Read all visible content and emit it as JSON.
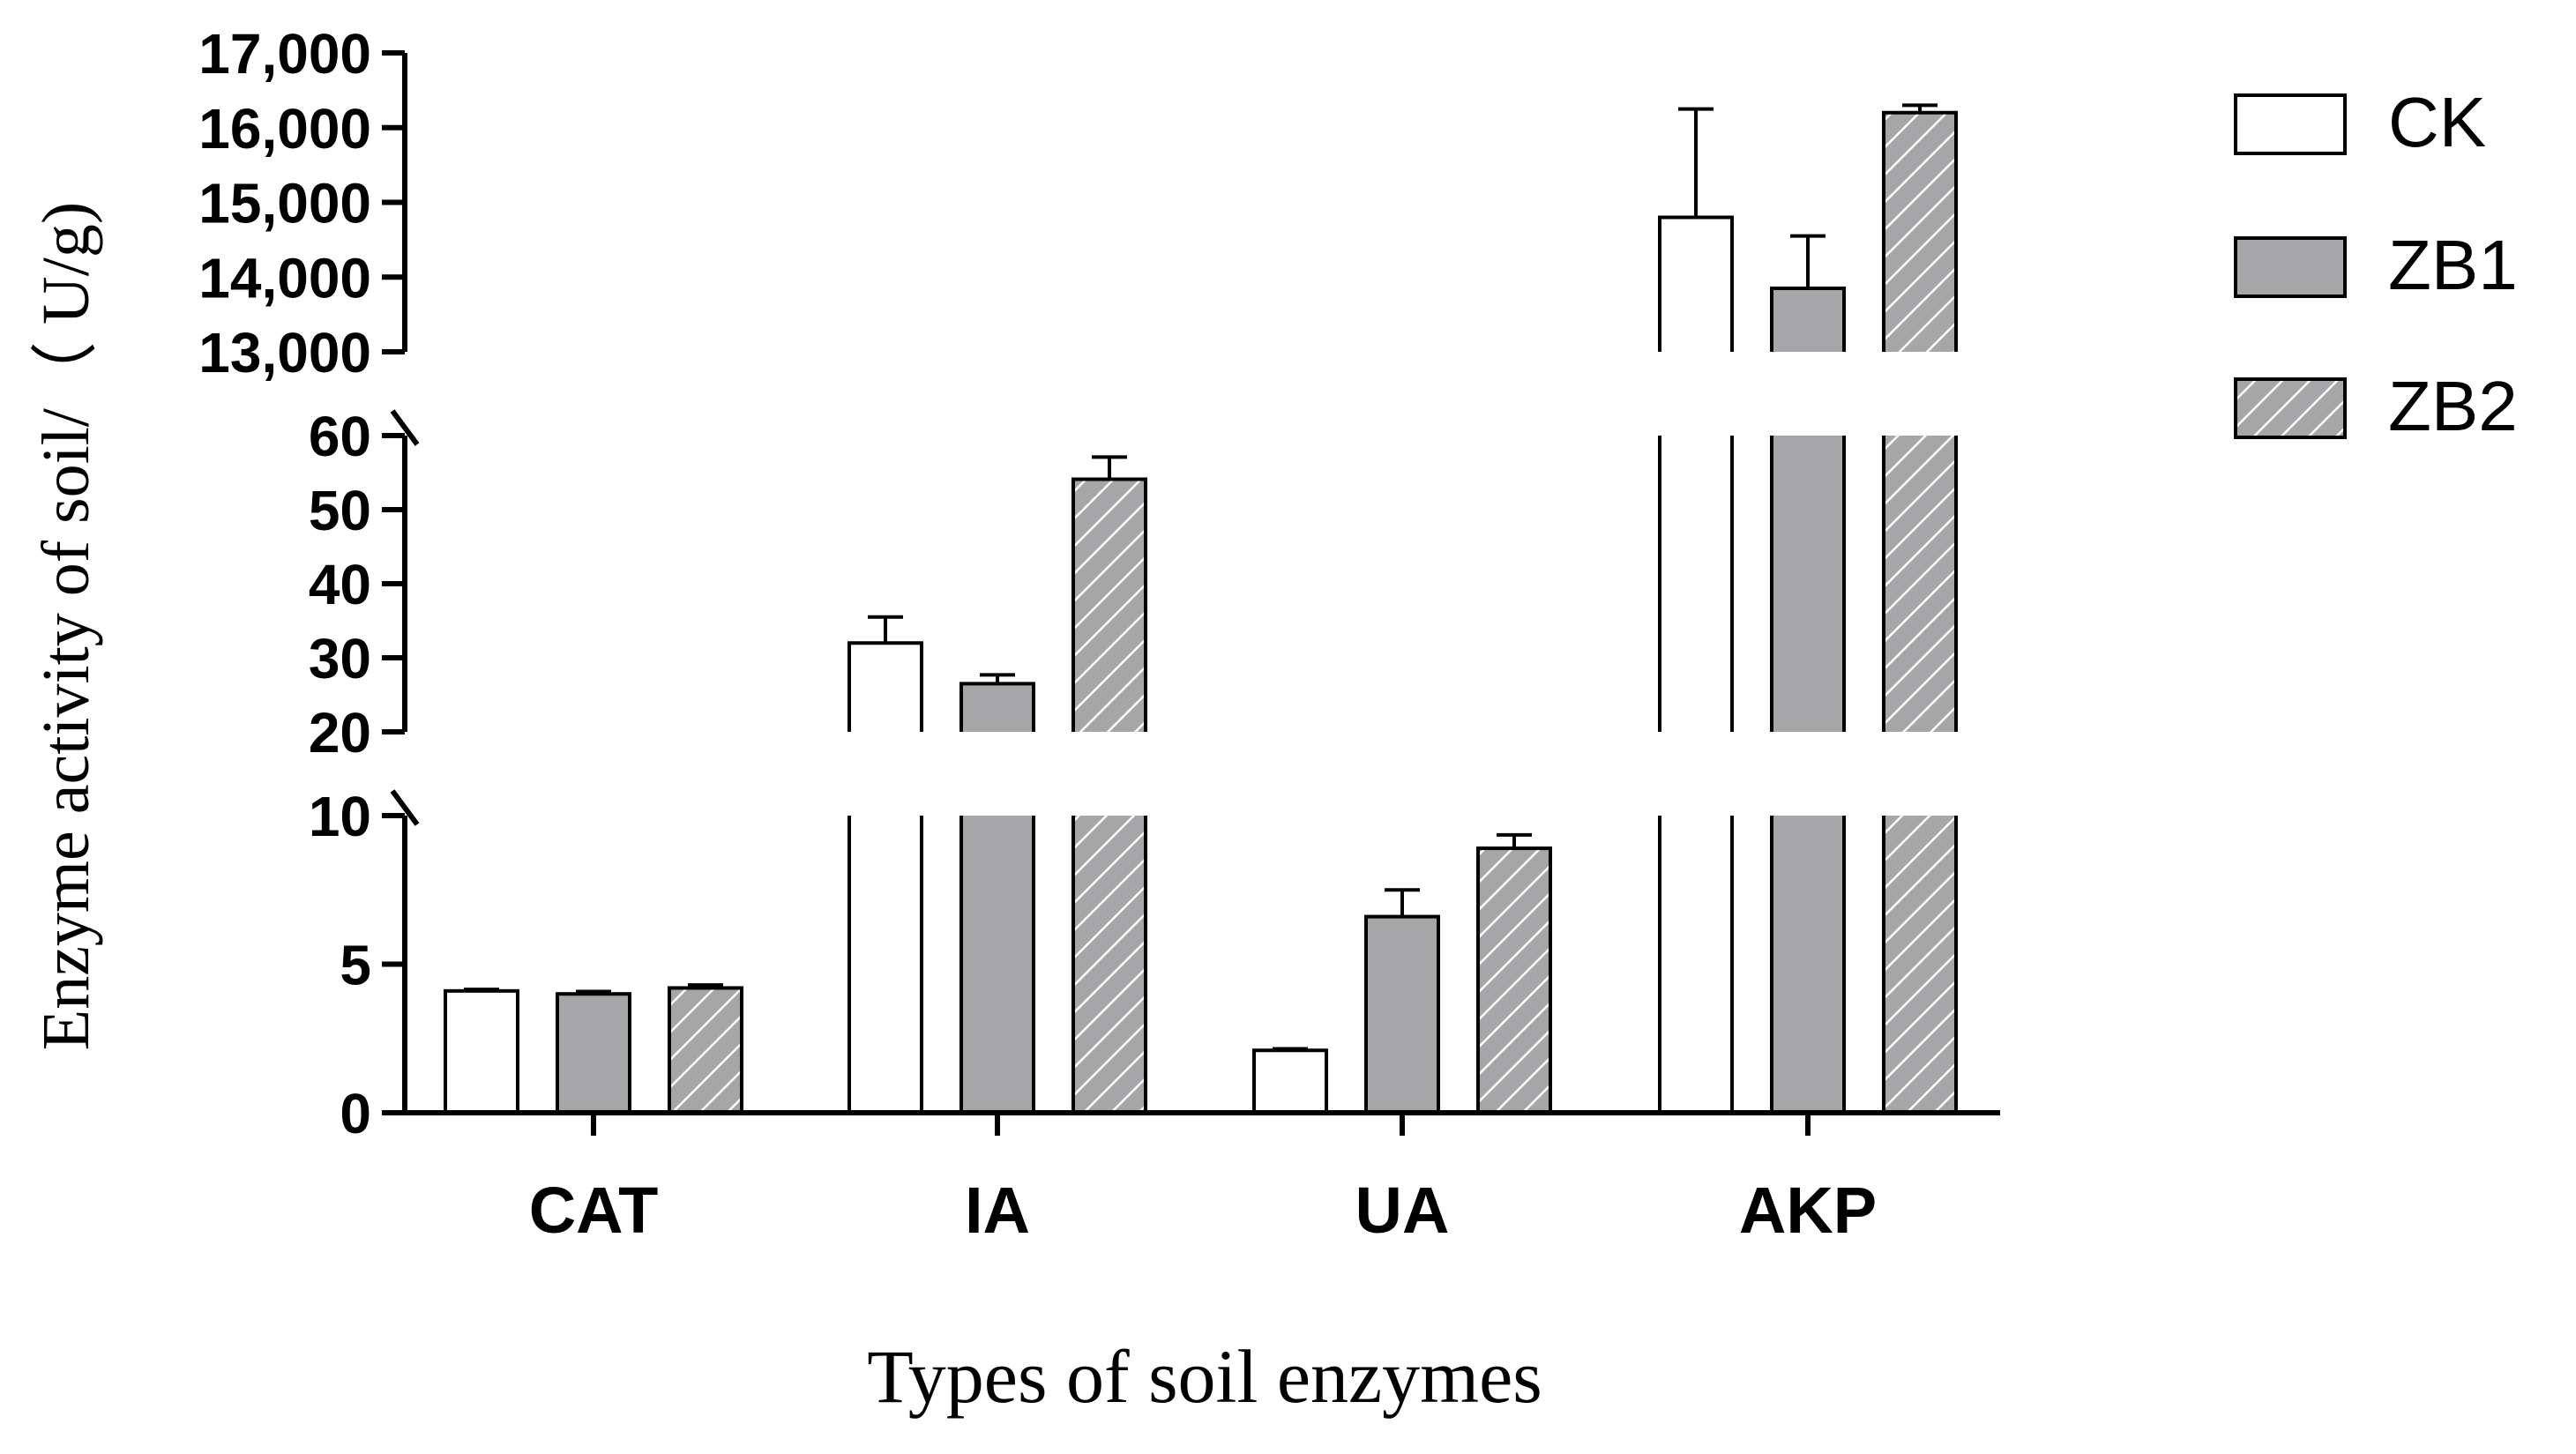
{
  "chart_data": {
    "type": "bar",
    "title": "",
    "xlabel": "Types of soil enzymes",
    "ylabel": "Enzyme activity of soil/（ U/g)",
    "categories": [
      "CAT",
      "IA",
      "UA",
      "AKP"
    ],
    "series": [
      {
        "name": "CK",
        "values": [
          4.1,
          32,
          2.1,
          14800
        ],
        "errors": [
          0.05,
          3.5,
          0.05,
          1450
        ],
        "fill": "#ffffff",
        "pattern": "none"
      },
      {
        "name": "ZB1",
        "values": [
          4.0,
          26.5,
          6.6,
          13850
        ],
        "errors": [
          0.08,
          1.2,
          0.9,
          700
        ],
        "fill": "#a6a6a8",
        "pattern": "none"
      },
      {
        "name": "ZB2",
        "values": [
          4.2,
          54.1,
          8.9,
          16200
        ],
        "errors": [
          0.1,
          3.0,
          0.45,
          100
        ],
        "fill": "#a6a6a8",
        "pattern": "diagonal-hatch"
      }
    ],
    "y_segments": [
      {
        "range": [
          0,
          10
        ],
        "ticks": [
          0,
          5,
          10
        ],
        "tick_labels": [
          "0",
          "5",
          "10"
        ]
      },
      {
        "range": [
          20,
          60
        ],
        "ticks": [
          20,
          30,
          40,
          50,
          60
        ],
        "tick_labels": [
          "20",
          "30",
          "40",
          "50",
          "60"
        ]
      },
      {
        "range": [
          13000,
          17000
        ],
        "ticks": [
          13000,
          14000,
          15000,
          16000,
          17000
        ],
        "tick_labels": [
          "13,000",
          "14,000",
          "15,000",
          "16,000",
          "17,000"
        ]
      }
    ],
    "axis_breaks": [
      [
        10,
        20
      ],
      [
        60,
        13000
      ]
    ],
    "grid": false,
    "legend_position": "top-right",
    "colors": {
      "axis": "#000000",
      "bar_outline": "#000000",
      "gray": "#a6a6a8",
      "hatch_line": "#ffffff"
    }
  }
}
